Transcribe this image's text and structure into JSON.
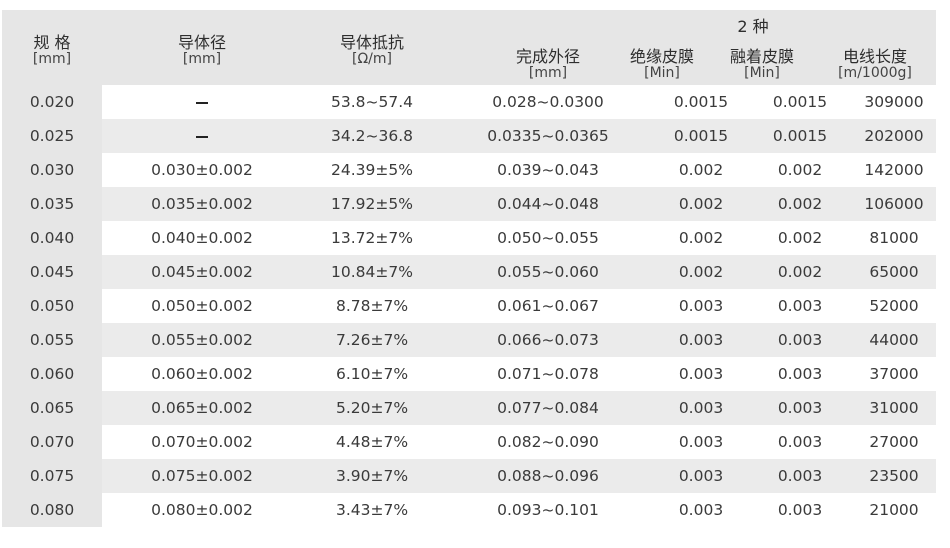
{
  "header": {
    "spec": {
      "label": "规 格",
      "unit": "[mm]"
    },
    "conductor_dia": {
      "label": "导体径",
      "unit": "[mm]"
    },
    "resistance": {
      "label": "导体抵抗",
      "unit": "[Ω/m]"
    },
    "finished_od": {
      "label": "完成外径",
      "unit": "[mm]"
    },
    "group": "2 种",
    "insulation": {
      "label": "绝缘皮膜",
      "unit": "[Min]"
    },
    "fusion": {
      "label": "融着皮膜",
      "unit": "[Min]"
    },
    "length": {
      "label": "电线长度",
      "unit": "[m/1000g]"
    }
  },
  "rows": [
    {
      "spec": "0.020",
      "dia": "",
      "res": "53.8~57.4",
      "od": "0.028~0.0300",
      "ins": "0.0015",
      "fus": "0.0015",
      "len": "309000"
    },
    {
      "spec": "0.025",
      "dia": "",
      "res": "34.2~36.8",
      "od": "0.0335~0.0365",
      "ins": "0.0015",
      "fus": "0.0015",
      "len": "202000"
    },
    {
      "spec": "0.030",
      "dia": "0.030±0.002",
      "res": "24.39±5%",
      "od": "0.039~0.043",
      "ins": "0.002",
      "fus": "0.002",
      "len": "142000"
    },
    {
      "spec": "0.035",
      "dia": "0.035±0.002",
      "res": "17.92±5%",
      "od": "0.044~0.048",
      "ins": "0.002",
      "fus": "0.002",
      "len": "106000"
    },
    {
      "spec": "0.040",
      "dia": "0.040±0.002",
      "res": "13.72±7%",
      "od": "0.050~0.055",
      "ins": "0.002",
      "fus": "0.002",
      "len": "81000"
    },
    {
      "spec": "0.045",
      "dia": "0.045±0.002",
      "res": "10.84±7%",
      "od": "0.055~0.060",
      "ins": "0.002",
      "fus": "0.002",
      "len": "65000"
    },
    {
      "spec": "0.050",
      "dia": "0.050±0.002",
      "res": "8.78±7%",
      "od": "0.061~0.067",
      "ins": "0.003",
      "fus": "0.003",
      "len": "52000"
    },
    {
      "spec": "0.055",
      "dia": "0.055±0.002",
      "res": "7.26±7%",
      "od": "0.066~0.073",
      "ins": "0.003",
      "fus": "0.003",
      "len": "44000"
    },
    {
      "spec": "0.060",
      "dia": "0.060±0.002",
      "res": "6.10±7%",
      "od": "0.071~0.078",
      "ins": "0.003",
      "fus": "0.003",
      "len": "37000"
    },
    {
      "spec": "0.065",
      "dia": "0.065±0.002",
      "res": "5.20±7%",
      "od": "0.077~0.084",
      "ins": "0.003",
      "fus": "0.003",
      "len": "31000"
    },
    {
      "spec": "0.070",
      "dia": "0.070±0.002",
      "res": "4.48±7%",
      "od": "0.082~0.090",
      "ins": "0.003",
      "fus": "0.003",
      "len": "27000"
    },
    {
      "spec": "0.075",
      "dia": "0.075±0.002",
      "res": "3.90±7%",
      "od": "0.088~0.096",
      "ins": "0.003",
      "fus": "0.003",
      "len": "23500"
    },
    {
      "spec": "0.080",
      "dia": "0.080±0.002",
      "res": "3.43±7%",
      "od": "0.093~0.101",
      "ins": "0.003",
      "fus": "0.003",
      "len": "21000"
    }
  ]
}
